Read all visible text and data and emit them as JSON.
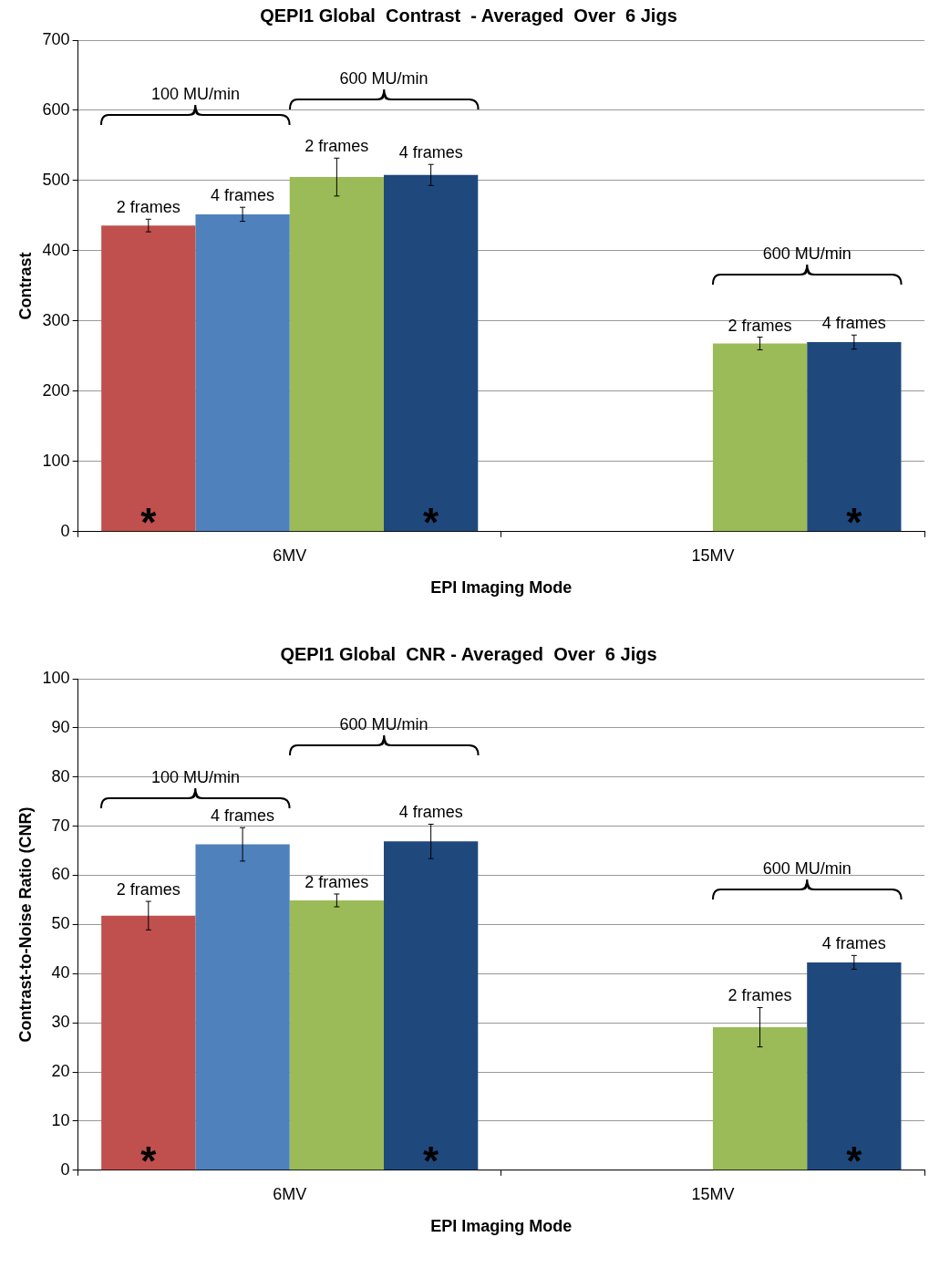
{
  "chart_data": [
    {
      "type": "bar",
      "title": "QEPI1 Global  Contrast  - Averaged  Over  6 Jigs",
      "xlabel": "EPI Imaging Mode",
      "ylabel": "Contrast",
      "categories": [
        "6MV",
        "15MV"
      ],
      "series": [
        {
          "name": "2 frames",
          "color": "#c0504d",
          "values": [
            436,
            null
          ],
          "errors": [
            9,
            null
          ]
        },
        {
          "name": "4 frames",
          "color": "#4f81bd",
          "values": [
            452,
            null
          ],
          "errors": [
            10,
            null
          ]
        },
        {
          "name": "2 frames",
          "color": "#9bbb59",
          "values": [
            505,
            268
          ],
          "errors": [
            27,
            9
          ]
        },
        {
          "name": "4 frames",
          "color": "#1f497d",
          "values": [
            508,
            270
          ],
          "errors": [
            15,
            10
          ]
        }
      ],
      "ylim": [
        0,
        700
      ],
      "yticks": [
        0,
        100,
        200,
        300,
        400,
        500,
        600,
        700
      ],
      "grid": "y",
      "annotations": [
        "100 MU/min",
        "600 MU/min",
        "600 MU/min",
        "*",
        "*",
        "*"
      ]
    },
    {
      "type": "bar",
      "title": "QEPI1 Global  CNR - Averaged  Over  6 Jigs",
      "xlabel": "EPI Imaging Mode",
      "ylabel": "Contrast-to-Noise Ratio (CNR)",
      "categories": [
        "6MV",
        "15MV"
      ],
      "series": [
        {
          "name": "2 frames",
          "color": "#c0504d",
          "values": [
            51.8,
            null
          ],
          "errors": [
            2.9,
            null
          ]
        },
        {
          "name": "4 frames",
          "color": "#4f81bd",
          "values": [
            66.3,
            null
          ],
          "errors": [
            3.4,
            null
          ]
        },
        {
          "name": "2 frames",
          "color": "#9bbb59",
          "values": [
            54.9,
            29.1
          ],
          "errors": [
            1.3,
            4
          ]
        },
        {
          "name": "4 frames",
          "color": "#1f497d",
          "values": [
            66.9,
            42.3
          ],
          "errors": [
            3.5,
            1.4
          ]
        }
      ],
      "ylim": [
        0,
        100
      ],
      "yticks": [
        0,
        10,
        20,
        30,
        40,
        50,
        60,
        70,
        80,
        90,
        100
      ],
      "grid": "y",
      "annotations": [
        "100 MU/min",
        "600 MU/min",
        "600 MU/min",
        "*",
        "*",
        "*"
      ]
    }
  ]
}
